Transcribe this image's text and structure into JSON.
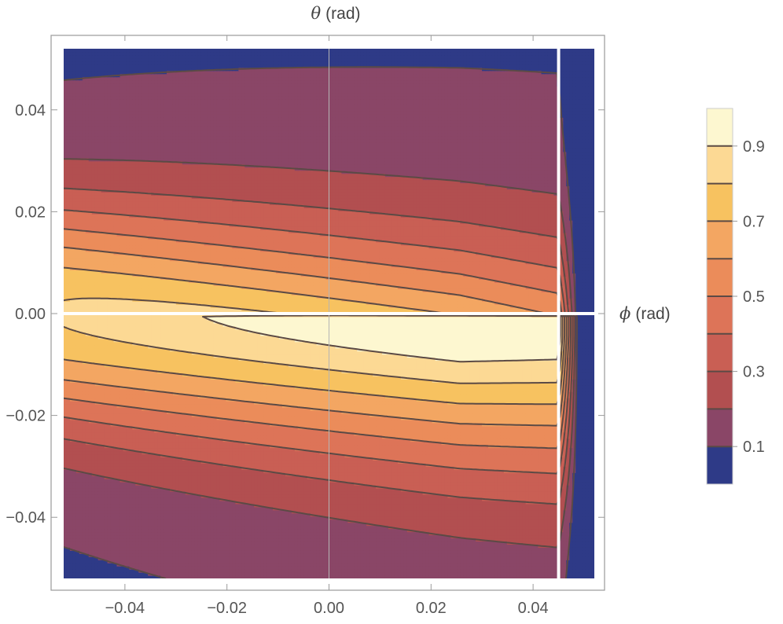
{
  "chart_data": {
    "type": "contour",
    "x_axis": {
      "symbol": "ϕ",
      "unit": "(rad)",
      "range": [
        -0.055,
        0.055
      ],
      "ticks": [
        -0.04,
        -0.02,
        0.0,
        0.02,
        0.04
      ],
      "tick_labels": [
        "−0.04",
        "−0.02",
        "0.00",
        "0.02",
        "0.04"
      ]
    },
    "y_axis": {
      "symbol": "θ",
      "unit": "(rad)",
      "range": [
        -0.055,
        0.055
      ],
      "ticks": [
        -0.04,
        -0.02,
        0.0,
        0.02,
        0.04
      ],
      "tick_labels": [
        "−0.04",
        "−0.02",
        "0.00",
        "0.02",
        "0.04"
      ]
    },
    "data_domain": {
      "x": [
        -0.052,
        0.052
      ],
      "y": [
        -0.052,
        0.052
      ]
    },
    "colorbar": {
      "range": [
        0,
        1
      ],
      "tick_values": [
        0.1,
        0.3,
        0.5,
        0.7,
        0.9
      ],
      "tick_labels": [
        "0.1",
        "0.3",
        "0.5",
        "0.7",
        "0.9"
      ]
    },
    "contour_levels": [
      0.1,
      0.2,
      0.3,
      0.4,
      0.5,
      0.6,
      0.7,
      0.8,
      0.9
    ],
    "bands": [
      {
        "from": 0.0,
        "to": 0.1,
        "color": "#2e3a87"
      },
      {
        "from": 0.1,
        "to": 0.2,
        "color": "#8a4667"
      },
      {
        "from": 0.2,
        "to": 0.3,
        "color": "#b24f50"
      },
      {
        "from": 0.3,
        "to": 0.4,
        "color": "#c95f54"
      },
      {
        "from": 0.4,
        "to": 0.5,
        "color": "#dd7458"
      },
      {
        "from": 0.5,
        "to": 0.6,
        "color": "#eb8c5a"
      },
      {
        "from": 0.6,
        "to": 0.7,
        "color": "#f3a662"
      },
      {
        "from": 0.7,
        "to": 0.8,
        "color": "#f7c260"
      },
      {
        "from": 0.8,
        "to": 0.9,
        "color": "#fcd994"
      },
      {
        "from": 0.9,
        "to": 1.0,
        "color": "#fdf7d0"
      }
    ],
    "cutoff": {
      "phi_edge": 0.045,
      "phi_zero_at": 0.049,
      "note_visible": false
    },
    "gaps": {
      "theta_zero_line": true,
      "phi_edge_line": true
    },
    "grid": false,
    "legend": "colorbar-right"
  },
  "colors": {
    "frame": "#9a9a9a",
    "contour_line": "#5b4a45",
    "zero_axis": "#b5b5b5",
    "tick_text": "#555555"
  }
}
